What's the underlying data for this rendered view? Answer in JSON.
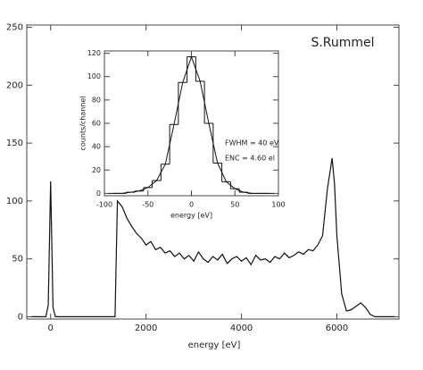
{
  "chart_data": [
    {
      "type": "line",
      "xlabel": "energy [eV]",
      "annotation": "S.Rummel",
      "x": [
        -400,
        -300,
        -200,
        -100,
        -50,
        0,
        50,
        100,
        200,
        400,
        600,
        800,
        1000,
        1200,
        1300,
        1350,
        1400,
        1500,
        1600,
        1700,
        1800,
        1900,
        2000,
        2100,
        2200,
        2300,
        2400,
        2500,
        2600,
        2700,
        2800,
        2900,
        3000,
        3100,
        3200,
        3300,
        3400,
        3500,
        3600,
        3700,
        3800,
        3900,
        4000,
        4100,
        4200,
        4300,
        4400,
        4500,
        4600,
        4700,
        4800,
        4900,
        5000,
        5100,
        5200,
        5300,
        5400,
        5500,
        5600,
        5700,
        5800,
        5900,
        5950,
        6000,
        6100,
        6200,
        6300,
        6400,
        6500,
        6600,
        6700,
        6800,
        6900,
        7000,
        7100,
        7200
      ],
      "series": [
        {
          "color": "#111111",
          "values": [
            0,
            0,
            0,
            0,
            10,
            117,
            8,
            0,
            0,
            0,
            0,
            0,
            0,
            0,
            0,
            0,
            100,
            95,
            85,
            78,
            72,
            68,
            62,
            65,
            58,
            60,
            55,
            57,
            52,
            55,
            50,
            53,
            48,
            56,
            50,
            47,
            52,
            49,
            54,
            46,
            50,
            52,
            48,
            51,
            45,
            53,
            49,
            50,
            47,
            52,
            50,
            55,
            51,
            53,
            56,
            54,
            58,
            57,
            62,
            70,
            110,
            137,
            115,
            70,
            20,
            5,
            6,
            9,
            12,
            8,
            2,
            0,
            0,
            0,
            0,
            0
          ]
        }
      ],
      "xlim": [
        -500,
        7300
      ],
      "ylim": [
        -2,
        252
      ],
      "xticks": [
        0,
        2000,
        4000,
        6000
      ],
      "yticks": [
        0,
        50,
        100,
        150,
        200,
        250
      ]
    },
    {
      "type": "step",
      "xlabel": "energy [eV]",
      "ylabel": "counts/channel",
      "annotations": [
        "FWHM = 40 eV",
        "ENC = 4.60 el"
      ],
      "x": [
        -90,
        -80,
        -70,
        -60,
        -50,
        -40,
        -30,
        -20,
        -10,
        0,
        10,
        20,
        30,
        40,
        50,
        60,
        70,
        80,
        90
      ],
      "series": [
        {
          "color": "#111111",
          "values": [
            0,
            0,
            1,
            2,
            5,
            11,
            25,
            59,
            95,
            117,
            96,
            60,
            26,
            10,
            4,
            1,
            0,
            0,
            0
          ]
        }
      ],
      "xlim": [
        -100,
        100
      ],
      "ylim": [
        -2,
        122
      ],
      "xticks": [
        -100,
        -50,
        0,
        50,
        100
      ],
      "yticks": [
        0,
        20,
        40,
        60,
        80,
        100,
        120
      ]
    }
  ]
}
